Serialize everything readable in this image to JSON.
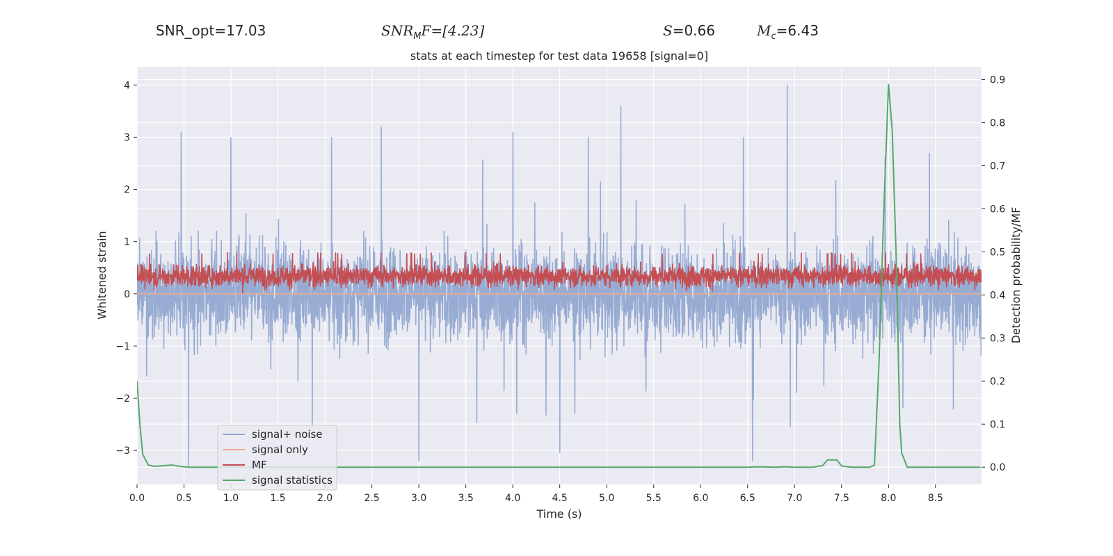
{
  "header": {
    "snr_opt": "SNR_opt=17.03",
    "snr_mf_name": "SNR",
    "snr_mf_sub": "M",
    "snr_mf_tail": "F=[4.23]",
    "s_name": "S",
    "s_value": "=0.66",
    "mc_name": "M",
    "mc_sub": "c",
    "mc_value": "=6.43"
  },
  "chart_data": {
    "type": "line",
    "title": "stats at each timestep for test data 19658 [signal=0]",
    "xlabel": "Time (s)",
    "ylabel_left": "Whitened strain",
    "ylabel_right": "Detection probability/MF",
    "xlim": [
      0.0,
      8.99
    ],
    "ylim_left": [
      -3.65,
      4.35
    ],
    "ylim_right": [
      -0.04,
      0.93
    ],
    "xticks": [
      "0.0",
      "0.5",
      "1.0",
      "1.5",
      "2.0",
      "2.5",
      "3.0",
      "3.5",
      "4.0",
      "4.5",
      "5.0",
      "5.5",
      "6.0",
      "6.5",
      "7.0",
      "7.5",
      "8.0",
      "8.5"
    ],
    "yticks_left": [
      "−3",
      "−2",
      "−1",
      "0",
      "1",
      "2",
      "3",
      "4"
    ],
    "yticks_right": [
      "0.0",
      "0.1",
      "0.2",
      "0.3",
      "0.4",
      "0.5",
      "0.6",
      "0.7",
      "0.8",
      "0.9"
    ],
    "legend": {
      "location": "lower-left",
      "entries": [
        {
          "label": "signal+ noise",
          "color": "#8fa5cf"
        },
        {
          "label": "signal only",
          "color": "#eeaa8c"
        },
        {
          "label": "MF",
          "color": "#c44e52"
        },
        {
          "label": "signal statistics",
          "color": "#55a868"
        }
      ]
    },
    "series": [
      {
        "name": "signal+ noise",
        "axis": "left",
        "color": "#8fa5cf",
        "kind": "dense noise, whitened strain fluctuating approx. between -3.3 and 4.0",
        "envelope_typical": [
          -1.6,
          1.7
        ],
        "peaks": [
          [
            0.47,
            3.1
          ],
          [
            1.0,
            3.0
          ],
          [
            2.6,
            3.2
          ],
          [
            4.0,
            3.1
          ],
          [
            5.15,
            3.6
          ],
          [
            6.92,
            4.0
          ],
          [
            0.55,
            -3.3
          ],
          [
            3.0,
            -3.2
          ],
          [
            6.55,
            -3.2
          ],
          [
            4.5,
            -3.05
          ]
        ]
      },
      {
        "name": "signal only",
        "axis": "left",
        "color": "#eeaa8c",
        "kind": "flat zero (no signal)"
      },
      {
        "name": "MF",
        "axis": "right",
        "color": "#c44e52",
        "kind": "dense noise band approx. between 0.40 and 0.50",
        "range": [
          0.4,
          0.5
        ]
      },
      {
        "name": "signal statistics",
        "axis": "right",
        "color": "#55a868",
        "x": [
          0.0,
          0.03,
          0.06,
          0.12,
          0.18,
          0.25,
          0.37,
          0.45,
          0.55,
          1.0,
          1.5,
          2.0,
          2.5,
          3.0,
          4.0,
          5.0,
          6.0,
          6.5,
          6.6,
          6.8,
          6.9,
          7.0,
          7.2,
          7.3,
          7.35,
          7.41,
          7.45,
          7.5,
          7.6,
          7.8,
          7.85,
          7.9,
          7.95,
          8.0,
          8.04,
          8.08,
          8.12,
          8.14,
          8.2,
          8.5,
          8.98
        ],
        "y": [
          0.2,
          0.1,
          0.03,
          0.005,
          0.002,
          0.003,
          0.005,
          0.002,
          0.0,
          0.0,
          0.0,
          0.0,
          0.0,
          0.0,
          0.0,
          0.0,
          0.0,
          0.0,
          0.001,
          0.0,
          0.001,
          0.0,
          0.0,
          0.004,
          0.017,
          0.017,
          0.017,
          0.003,
          0.0,
          0.0,
          0.005,
          0.25,
          0.6,
          0.89,
          0.78,
          0.5,
          0.1,
          0.033,
          0.0,
          0.0,
          0.0
        ]
      }
    ]
  }
}
